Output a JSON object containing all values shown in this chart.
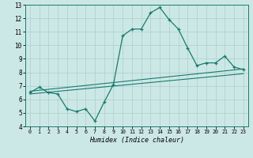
{
  "xlabel": "Humidex (Indice chaleur)",
  "x_main": [
    0,
    1,
    2,
    3,
    4,
    5,
    6,
    7,
    8,
    9,
    10,
    11,
    12,
    13,
    14,
    15,
    16,
    17,
    18,
    19,
    20,
    21,
    22,
    23
  ],
  "y_main": [
    6.5,
    6.9,
    6.5,
    6.4,
    5.3,
    5.1,
    5.3,
    4.4,
    5.8,
    7.1,
    10.7,
    11.2,
    11.2,
    12.4,
    12.8,
    11.9,
    11.2,
    9.8,
    8.5,
    8.7,
    8.7,
    9.2,
    8.4,
    8.2
  ],
  "line_color": "#1a7a6e",
  "bg_color": "#cce8e6",
  "grid_color": "#aacfcc",
  "ylim": [
    4,
    13
  ],
  "xlim": [
    -0.5,
    23.5
  ],
  "yticks": [
    4,
    5,
    6,
    7,
    8,
    9,
    10,
    11,
    12,
    13
  ],
  "xticks": [
    0,
    1,
    2,
    3,
    4,
    5,
    6,
    7,
    8,
    9,
    10,
    11,
    12,
    13,
    14,
    15,
    16,
    17,
    18,
    19,
    20,
    21,
    22,
    23
  ],
  "trend1_x": [
    0,
    23
  ],
  "trend1_y": [
    6.4,
    7.9
  ],
  "trend2_x": [
    0,
    23
  ],
  "trend2_y": [
    6.6,
    8.25
  ]
}
